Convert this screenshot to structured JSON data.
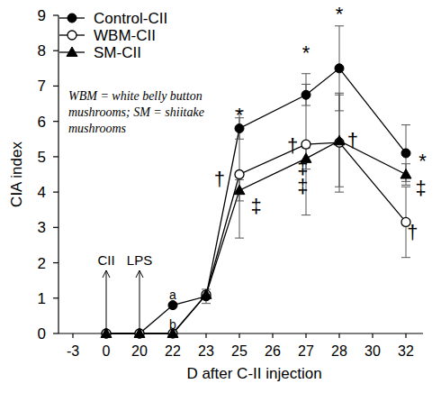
{
  "chart_data": {
    "type": "line",
    "x_label": "D after C-II injection",
    "y_label": "CIA index",
    "categories": [
      "-3",
      "0",
      "20",
      "22",
      "23",
      "25",
      "26",
      "27",
      "28",
      "30",
      "32"
    ],
    "ylim": [
      0,
      9
    ],
    "yticks": [
      0,
      1,
      2,
      3,
      4,
      5,
      6,
      7,
      8,
      9
    ],
    "grid": false,
    "legend": "upper left",
    "series": [
      {
        "name": "Control-CII",
        "color": "#000000",
        "marker": "filled-circle",
        "line_style": "solid",
        "x": [
          "0",
          "20",
          "22",
          "23",
          "25",
          "27",
          "28",
          "32"
        ],
        "values": [
          0,
          0,
          0.8,
          1.05,
          5.8,
          6.75,
          7.5,
          5.1
        ],
        "errors": [
          0,
          0,
          0,
          0.2,
          0.3,
          0.3,
          1.2,
          0.8
        ]
      },
      {
        "name": "WBM-CII",
        "color": "#000000",
        "marker": "open-circle",
        "line_style": "solid",
        "x": [
          "0",
          "20",
          "22",
          "23",
          "25",
          "27",
          "28",
          "32"
        ],
        "values": [
          0,
          0,
          0,
          1.1,
          4.5,
          5.35,
          5.4,
          3.15
        ],
        "errors": [
          0,
          0,
          0,
          0,
          1.8,
          2.0,
          1.4,
          1.0
        ]
      },
      {
        "name": "SM-CII",
        "color": "#000000",
        "marker": "filled-triangle",
        "line_style": "solid",
        "x": [
          "0",
          "20",
          "22",
          "23",
          "25",
          "27",
          "28",
          "32"
        ],
        "values": [
          0,
          0,
          0,
          1.1,
          4.05,
          4.95,
          5.45,
          4.5
        ],
        "errors": [
          0,
          0,
          0,
          0,
          0.3,
          0.3,
          1.3,
          0.3
        ]
      }
    ],
    "events": [
      {
        "text": "CII",
        "x": "0"
      },
      {
        "text": "LPS",
        "x": "20"
      }
    ],
    "annotations": [
      {
        "text": "a",
        "x": 3,
        "y": 1.15
      },
      {
        "text": "b",
        "x": 3,
        "y": 0.3
      },
      {
        "text": "*",
        "x": 5,
        "y": 6.3
      },
      {
        "text": "*",
        "x": 7,
        "y": 8.05
      },
      {
        "text": "*",
        "x": 8,
        "y": 9.15
      },
      {
        "text": "*",
        "x": 10.5,
        "y": 5.0
      },
      {
        "text": "†",
        "x": 4.4,
        "y": 4.35
      },
      {
        "text": "†",
        "x": 6.6,
        "y": 5.3
      },
      {
        "text": "†",
        "x": 8.4,
        "y": 5.45
      },
      {
        "text": "†",
        "x": 10.2,
        "y": 2.85
      },
      {
        "text": "‡",
        "x": 5.5,
        "y": 3.6
      },
      {
        "text": "‡",
        "x": 6.9,
        "y": 4.7
      },
      {
        "text": "‡",
        "x": 6.9,
        "y": 4.15
      },
      {
        "text": "‡",
        "x": 10.45,
        "y": 4.1
      }
    ],
    "note": [
      "WBM = white belly button",
      "mushrooms; SM = shiitake",
      "mushrooms"
    ]
  }
}
